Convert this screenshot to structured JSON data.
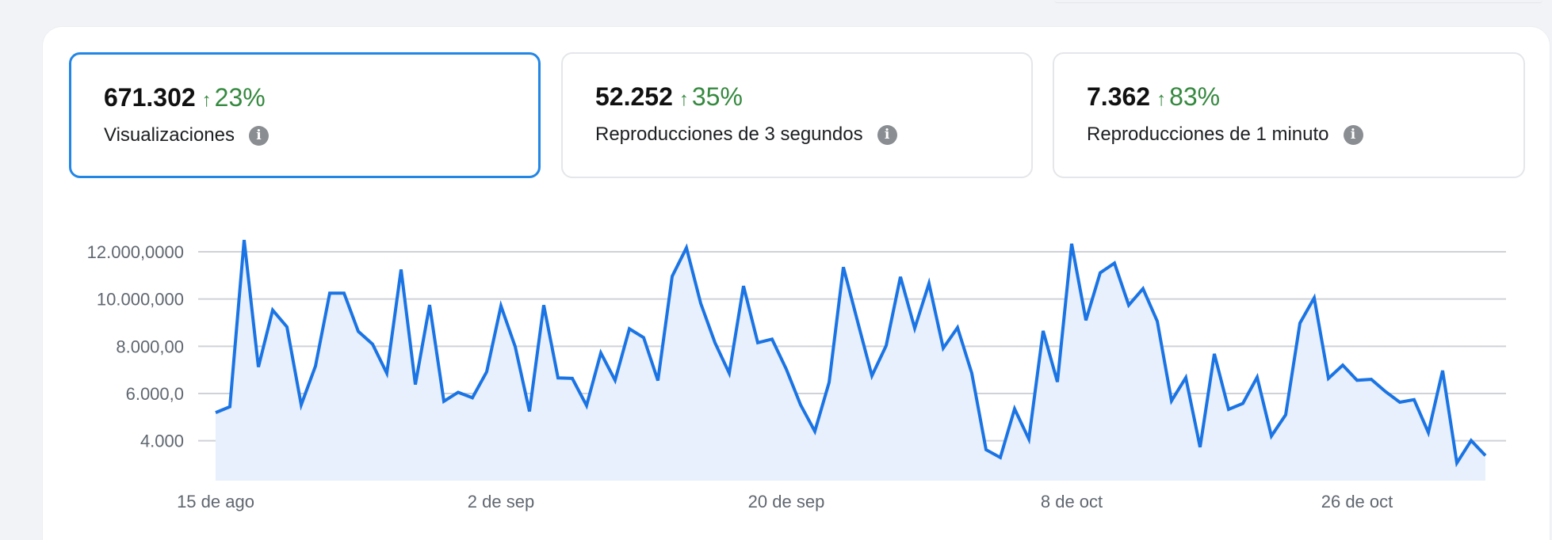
{
  "metrics": [
    {
      "value": "671.302",
      "change": "23%",
      "label": "Visualizaciones",
      "selected": true
    },
    {
      "value": "52.252",
      "change": "35%",
      "label": "Reproducciones de 3 segundos",
      "selected": false
    },
    {
      "value": "7.362",
      "change": "83%",
      "label": "Reproducciones de 1 minuto",
      "selected": false
    }
  ],
  "icons": {
    "trend": "arrow-up-icon",
    "info": "info-icon"
  },
  "colors": {
    "line": "#1b74e4",
    "fill": "#e7f0fc",
    "positive": "#35893f",
    "selected_border": "#2286e6"
  },
  "chart_data": {
    "type": "area",
    "grid": true,
    "ylim": [
      2300,
      12700
    ],
    "y_ticks": [
      {
        "value": 12000,
        "label": "12.000,0000"
      },
      {
        "value": 10000,
        "label": "10.000,000"
      },
      {
        "value": 8000,
        "label": "8.000,00"
      },
      {
        "value": 6000,
        "label": "6.000,0"
      },
      {
        "value": 4000,
        "label": "4.000"
      }
    ],
    "x_ticks": [
      {
        "index": 0,
        "label": "15 de ago"
      },
      {
        "index": 20,
        "label": "2 de sep"
      },
      {
        "index": 40,
        "label": "20 de sep"
      },
      {
        "index": 60,
        "label": "8 de oct"
      },
      {
        "index": 80,
        "label": "26 de oct"
      }
    ],
    "values": [
      5190,
      5440,
      12500,
      7120,
      9530,
      8820,
      5520,
      7160,
      10250,
      10250,
      8630,
      8090,
      6860,
      11250,
      6380,
      9750,
      5670,
      6050,
      5820,
      6920,
      9710,
      7980,
      5240,
      9740,
      6660,
      6640,
      5490,
      7720,
      6560,
      8740,
      8370,
      6550,
      10960,
      12170,
      9820,
      8150,
      6860,
      10550,
      8150,
      8300,
      7030,
      5520,
      4400,
      6470,
      11350,
      9040,
      6750,
      8030,
      10940,
      8760,
      10660,
      7920,
      8790,
      6860,
      3620,
      3290,
      5350,
      4070,
      8650,
      6490,
      12340,
      9100,
      11110,
      11520,
      9740,
      10440,
      9060,
      5690,
      6670,
      3730,
      7680,
      5330,
      5580,
      6690,
      4200,
      5100,
      8980,
      10050,
      6640,
      7200,
      6560,
      6600,
      6080,
      5630,
      5740,
      4350,
      6970,
      3060,
      4010,
      3370
    ]
  }
}
